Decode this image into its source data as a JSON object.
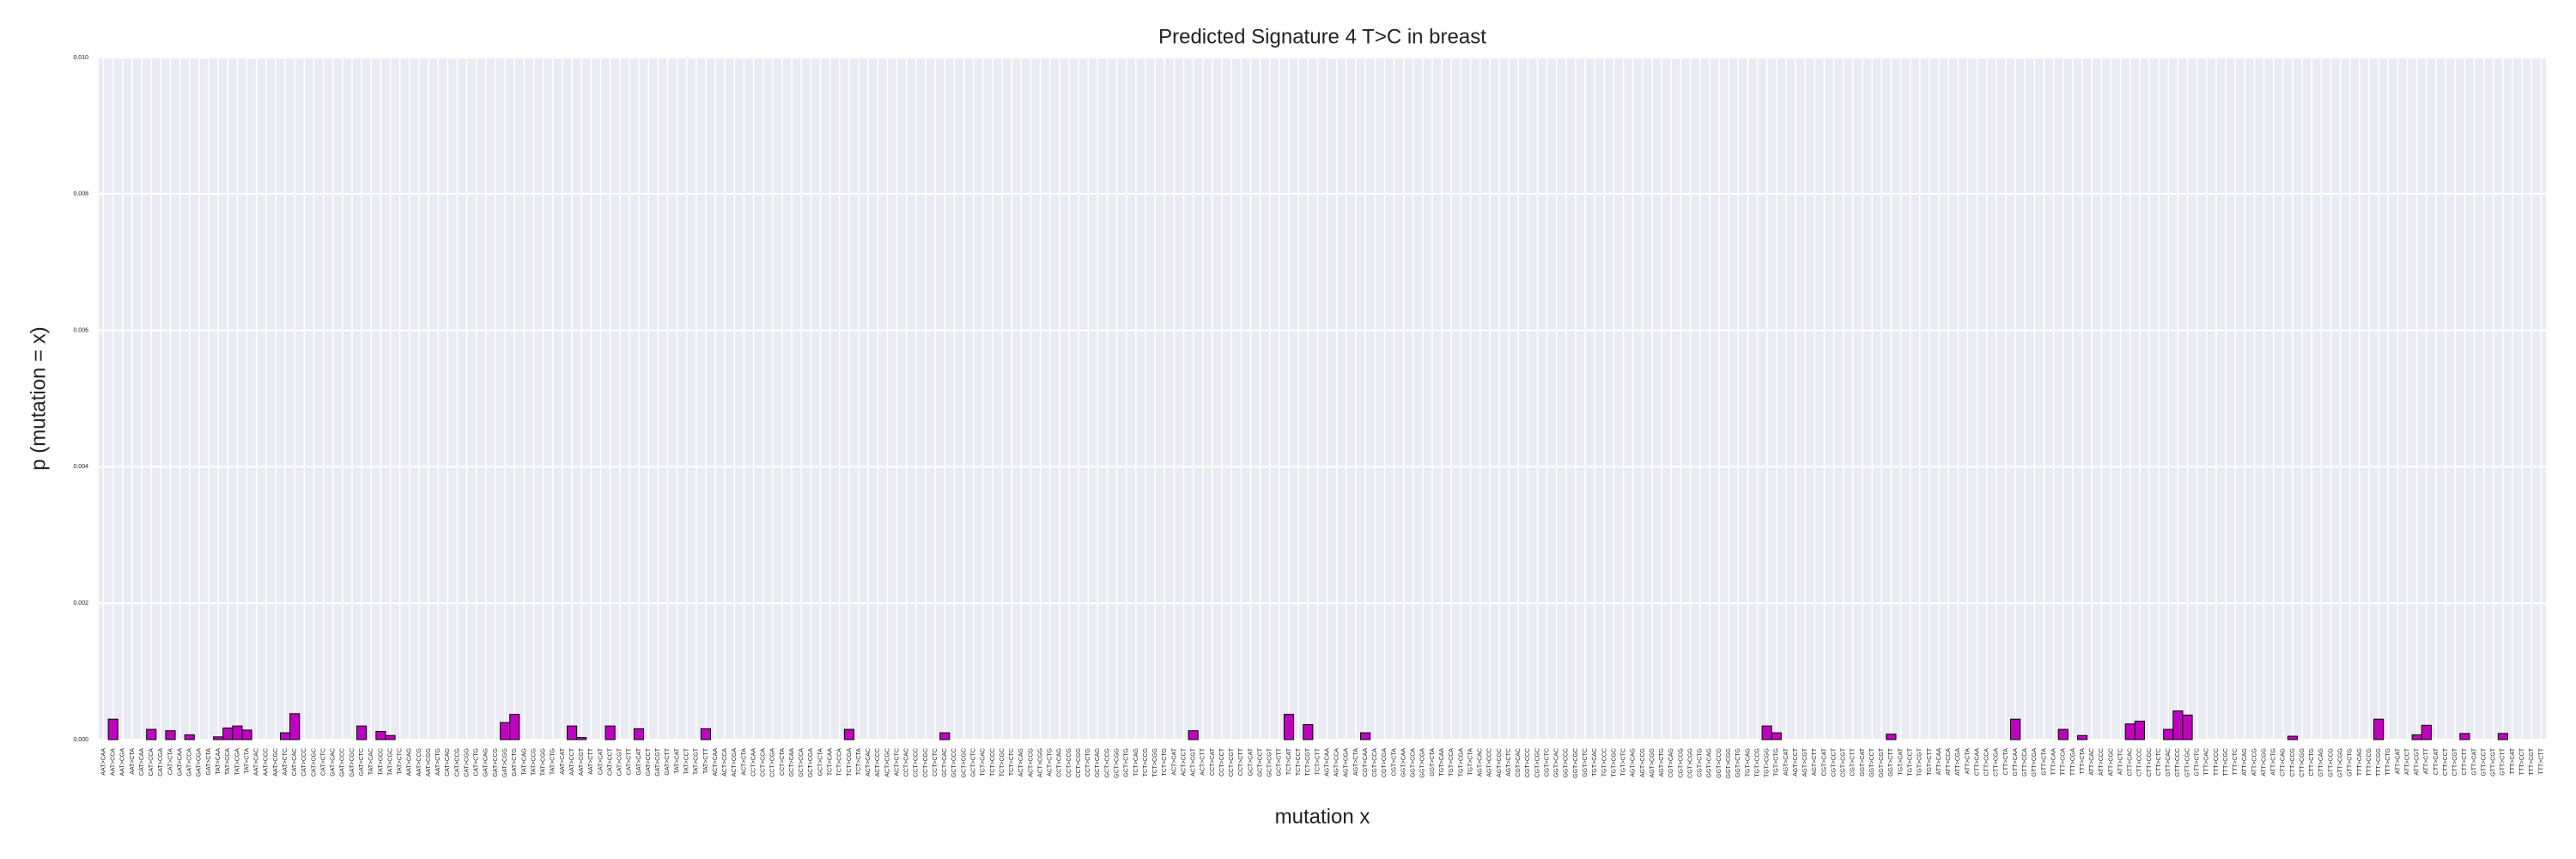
{
  "chart_data": {
    "type": "bar",
    "title": "Predicted Signature 4 T>C in breast",
    "xlabel": "mutation x",
    "ylabel": "p (mutation = x)",
    "color": "#bf00bf",
    "grid": true,
    "ylim": [
      0,
      0.01
    ],
    "yticks": [
      {
        "value": 0,
        "label": "0.000"
      },
      {
        "value": 0.002,
        "label": "0.002"
      },
      {
        "value": 0.004,
        "label": "0.004"
      },
      {
        "value": 0.006,
        "label": "0.006"
      },
      {
        "value": 0.008,
        "label": "0.008"
      },
      {
        "value": 0.01,
        "label": "0.010"
      }
    ],
    "categories": [
      "AAT>CAA",
      "AAT>CCA",
      "AAT>CGA",
      "AAT>CTA",
      "CAT>CAA",
      "CAT>CCA",
      "CAT>CGA",
      "CAT>CTA",
      "GAT>CAA",
      "GAT>CCA",
      "GAT>CGA",
      "GAT>CTA",
      "TAT>CAA",
      "TAT>CCA",
      "TAT>CGA",
      "TAT>CTA",
      "AAT>CAC",
      "AAT>CCC",
      "AAT>CGC",
      "AAT>CTC",
      "CAT>CAC",
      "CAT>CCC",
      "CAT>CGC",
      "CAT>CTC",
      "GAT>CAC",
      "GAT>CCC",
      "GAT>CGC",
      "GAT>CTC",
      "TAT>CAC",
      "TAT>CCC",
      "TAT>CGC",
      "TAT>CTC",
      "AAT>CAG",
      "AAT>CCG",
      "AAT>CGG",
      "AAT>CTG",
      "CAT>CAG",
      "CAT>CCG",
      "CAT>CGG",
      "CAT>CTG",
      "GAT>CAG",
      "GAT>CCG",
      "GAT>CGG",
      "GAT>CTG",
      "TAT>CAG",
      "TAT>CCG",
      "TAT>CGG",
      "TAT>CTG",
      "AAT>CAT",
      "AAT>CCT",
      "AAT>CGT",
      "AAT>CTT",
      "CAT>CAT",
      "CAT>CCT",
      "CAT>CGT",
      "CAT>CTT",
      "GAT>CAT",
      "GAT>CCT",
      "GAT>CGT",
      "GAT>CTT",
      "TAT>CAT",
      "TAT>CCT",
      "TAT>CGT",
      "TAT>CTT",
      "ACT>CAA",
      "ACT>CCA",
      "ACT>CGA",
      "ACT>CTA",
      "CCT>CAA",
      "CCT>CCA",
      "CCT>CGA",
      "CCT>CTA",
      "GCT>CAA",
      "GCT>CCA",
      "GCT>CGA",
      "GCT>CTA",
      "TCT>CAA",
      "TCT>CCA",
      "TCT>CGA",
      "TCT>CTA",
      "ACT>CAC",
      "ACT>CCC",
      "ACT>CGC",
      "ACT>CTC",
      "CCT>CAC",
      "CCT>CCC",
      "CCT>CGC",
      "CCT>CTC",
      "GCT>CAC",
      "GCT>CCC",
      "GCT>CGC",
      "GCT>CTC",
      "TCT>CAC",
      "TCT>CCC",
      "TCT>CGC",
      "TCT>CTC",
      "ACT>CAG",
      "ACT>CCG",
      "ACT>CGG",
      "ACT>CTG",
      "CCT>CAG",
      "CCT>CCG",
      "CCT>CGG",
      "CCT>CTG",
      "GCT>CAG",
      "GCT>CCG",
      "GCT>CGG",
      "GCT>CTG",
      "TCT>CAG",
      "TCT>CCG",
      "TCT>CGG",
      "TCT>CTG",
      "ACT>CAT",
      "ACT>CCT",
      "ACT>CGT",
      "ACT>CTT",
      "CCT>CAT",
      "CCT>CCT",
      "CCT>CGT",
      "CCT>CTT",
      "GCT>CAT",
      "GCT>CCT",
      "GCT>CGT",
      "GCT>CTT",
      "TCT>CAT",
      "TCT>CCT",
      "TCT>CGT",
      "TCT>CTT",
      "AGT>CAA",
      "AGT>CCA",
      "AGT>CGA",
      "AGT>CTA",
      "CGT>CAA",
      "CGT>CCA",
      "CGT>CGA",
      "CGT>CTA",
      "GGT>CAA",
      "GGT>CCA",
      "GGT>CGA",
      "GGT>CTA",
      "TGT>CAA",
      "TGT>CCA",
      "TGT>CGA",
      "TGT>CTA",
      "AGT>CAC",
      "AGT>CCC",
      "AGT>CGC",
      "AGT>CTC",
      "CGT>CAC",
      "CGT>CCC",
      "CGT>CGC",
      "CGT>CTC",
      "GGT>CAC",
      "GGT>CCC",
      "GGT>CGC",
      "GGT>CTC",
      "TGT>CAC",
      "TGT>CCC",
      "TGT>CGC",
      "TGT>CTC",
      "AGT>CAG",
      "AGT>CCG",
      "AGT>CGG",
      "AGT>CTG",
      "CGT>CAG",
      "CGT>CCG",
      "CGT>CGG",
      "CGT>CTG",
      "GGT>CAG",
      "GGT>CCG",
      "GGT>CGG",
      "GGT>CTG",
      "TGT>CAG",
      "TGT>CCG",
      "TGT>CGG",
      "TGT>CTG",
      "AGT>CAT",
      "AGT>CCT",
      "AGT>CGT",
      "AGT>CTT",
      "CGT>CAT",
      "CGT>CCT",
      "CGT>CGT",
      "CGT>CTT",
      "GGT>CAT",
      "GGT>CCT",
      "GGT>CGT",
      "GGT>CTT",
      "TGT>CAT",
      "TGT>CCT",
      "TGT>CGT",
      "TGT>CTT",
      "ATT>CAA",
      "ATT>CCA",
      "ATT>CGA",
      "ATT>CTA",
      "CTT>CAA",
      "CTT>CCA",
      "CTT>CGA",
      "CTT>CTA",
      "GTT>CAA",
      "GTT>CCA",
      "GTT>CGA",
      "GTT>CTA",
      "TTT>CAA",
      "TTT>CCA",
      "TTT>CGA",
      "TTT>CTA",
      "ATT>CAC",
      "ATT>CCC",
      "ATT>CGC",
      "ATT>CTC",
      "CTT>CAC",
      "CTT>CCC",
      "CTT>CGC",
      "CTT>CTC",
      "GTT>CAC",
      "GTT>CCC",
      "GTT>CGC",
      "GTT>CTC",
      "TTT>CAC",
      "TTT>CCC",
      "TTT>CGC",
      "TTT>CTC",
      "ATT>CAG",
      "ATT>CCG",
      "ATT>CGG",
      "ATT>CTG",
      "CTT>CAG",
      "CTT>CCG",
      "CTT>CGG",
      "CTT>CTG",
      "GTT>CAG",
      "GTT>CCG",
      "GTT>CGG",
      "GTT>CTG",
      "TTT>CAG",
      "TTT>CCG",
      "TTT>CGG",
      "TTT>CTG",
      "ATT>CAT",
      "ATT>CCT",
      "ATT>CGT",
      "ATT>CTT",
      "CTT>CAT",
      "CTT>CCT",
      "CTT>CGT",
      "CTT>CTT",
      "GTT>CAT",
      "GTT>CCT",
      "GTT>CGT",
      "GTT>CTT",
      "TTT>CAT",
      "TTT>CCT",
      "TTT>CGT",
      "TTT>CTT"
    ],
    "values": [
      0,
      0.0003,
      0,
      0,
      0,
      0.00015,
      0,
      0.00013,
      0,
      7e-05,
      0,
      0,
      4e-05,
      0.00017,
      0.0002,
      0.00014,
      0,
      0,
      0,
      0.0001,
      0.00038,
      0,
      0,
      0,
      0,
      0,
      0,
      0.0002,
      0,
      0.00012,
      6e-05,
      0,
      0,
      0,
      0,
      0,
      0,
      0,
      0,
      0,
      0,
      0,
      0.00025,
      0.00037,
      0,
      0,
      0,
      0,
      0,
      0.0002,
      3e-05,
      0,
      0,
      0.0002,
      0,
      0,
      0.00016,
      0,
      0,
      0,
      0,
      0,
      0,
      0.00016,
      0,
      0,
      0,
      0,
      0,
      0,
      0,
      0,
      0,
      0,
      0,
      0,
      0,
      0,
      0.00015,
      0,
      0,
      0,
      0,
      0,
      0,
      0,
      0,
      0,
      0.0001,
      0,
      0,
      0,
      0,
      0,
      0,
      0,
      0,
      0,
      0,
      0,
      0,
      0,
      0,
      0,
      0,
      0,
      0,
      0,
      0,
      0,
      0,
      0,
      0,
      0,
      0.00013,
      0,
      0,
      0,
      0,
      0,
      0,
      0,
      0,
      0,
      0.00037,
      0,
      0.00022,
      0,
      0,
      0,
      0,
      0,
      0.0001,
      0,
      0,
      0,
      0,
      0,
      0,
      0,
      0,
      0,
      0,
      0,
      0,
      0,
      0,
      0,
      0,
      0,
      0,
      0,
      0,
      0,
      0,
      0,
      0,
      0,
      0,
      0,
      0,
      0,
      0,
      0,
      0,
      0,
      0,
      0,
      0,
      0,
      0,
      0,
      0,
      0,
      0.0002,
      0.0001,
      0,
      0,
      0,
      0,
      0,
      0,
      0,
      0,
      0,
      0,
      0,
      8e-05,
      0,
      0,
      0,
      0,
      0,
      0,
      0,
      0,
      0,
      0,
      0,
      0,
      0.0003,
      0,
      0,
      0,
      0,
      0.00015,
      0,
      6e-05,
      0,
      0,
      0,
      0,
      0.00023,
      0.00027,
      0,
      0,
      0.00015,
      0.00042,
      0.00036,
      0,
      0,
      0,
      0,
      0,
      0,
      0,
      0,
      0,
      0,
      5e-05,
      0,
      0,
      0,
      0,
      0,
      0,
      0,
      0,
      0.0003,
      0,
      0,
      0,
      7e-05,
      0.00021,
      0,
      0,
      0,
      9e-05,
      0,
      0,
      0,
      9e-05,
      0,
      0,
      0,
      0
    ]
  }
}
